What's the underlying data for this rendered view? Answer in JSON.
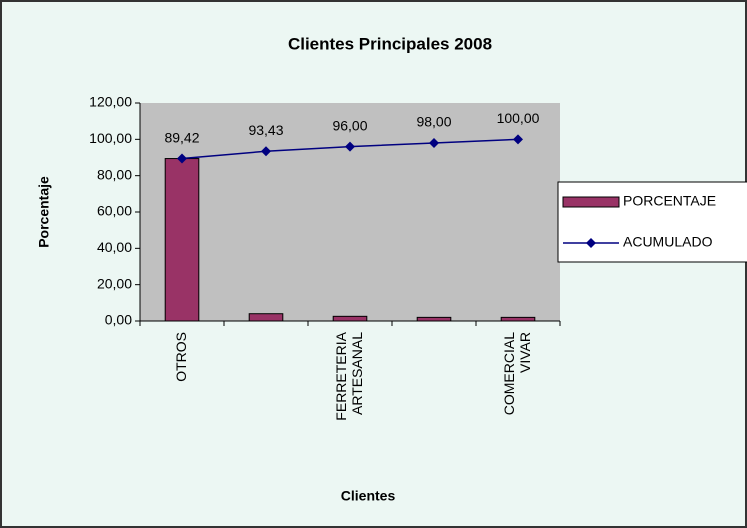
{
  "chart_data": {
    "type": "bar",
    "title": "Clientes Principales 2008",
    "x_label": "Clientes",
    "y_label": "Porcentaje",
    "categories": [
      "OTROS",
      null,
      "FERRETERIA ARTESANAL",
      null,
      "COMERCIAL VIVAR"
    ],
    "series": [
      {
        "name": "PORCENTAJE",
        "type": "bar",
        "color": "#993366",
        "values": [
          89.42,
          4.01,
          2.57,
          2.0,
          2.0
        ]
      },
      {
        "name": "ACUMULADO",
        "type": "line",
        "color": "#000080",
        "values": [
          89.42,
          93.43,
          96.0,
          98.0,
          100.0
        ],
        "value_labels": [
          "89,42",
          "93,43",
          "96,00",
          "98,00",
          "100,00"
        ]
      }
    ],
    "ylim": [
      0,
      120
    ],
    "yticks": [
      {
        "value": 0,
        "label": "0,00"
      },
      {
        "value": 20,
        "label": "20,00"
      },
      {
        "value": 40,
        "label": "40,00"
      },
      {
        "value": 60,
        "label": "60,00"
      },
      {
        "value": 80,
        "label": "80,00"
      },
      {
        "value": 100,
        "label": "100,00"
      },
      {
        "value": 120,
        "label": "120,00"
      }
    ],
    "grid": false,
    "legend": "right"
  }
}
